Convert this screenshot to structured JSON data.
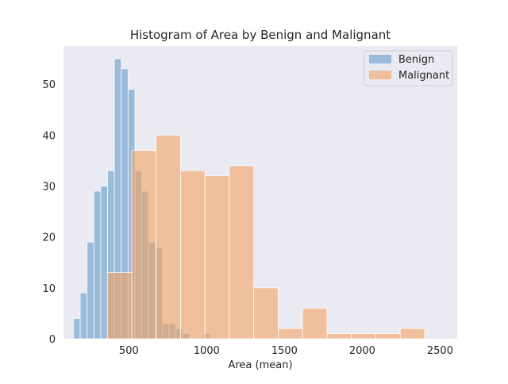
{
  "chart_data": {
    "type": "histogram",
    "title": "Histogram of Area by Benign and Malignant",
    "xlabel": "Area (mean)",
    "ylabel": "",
    "xlim": [
      80,
      2610
    ],
    "ylim": [
      0,
      57.5
    ],
    "xticks": [
      500,
      1000,
      1500,
      2000,
      2500
    ],
    "yticks": [
      0,
      10,
      20,
      30,
      40,
      50
    ],
    "grid": false,
    "legend_position": "top-right",
    "background_color": "#eaeaf2",
    "series": [
      {
        "name": "Benign",
        "color": "#4c8cc4",
        "opacity": 0.5,
        "bin_edges": [
          143.5,
          187.4,
          231.4,
          275.3,
          319.2,
          363.2,
          407.1,
          451.0,
          495.0,
          538.9,
          582.8,
          626.8,
          670.7,
          714.6,
          758.6,
          802.5,
          846.4,
          890.4,
          934.3,
          978.2,
          1022.2
        ],
        "counts": [
          4,
          9,
          19,
          29,
          30,
          33,
          55,
          53,
          49,
          33,
          29,
          19,
          18,
          3,
          3,
          2,
          1,
          0,
          0,
          1
        ]
      },
      {
        "name": "Malignant",
        "color": "#f4a261",
        "opacity": 0.6,
        "bin_edges": [
          361.6,
          518.5,
          675.3,
          832.2,
          989.0,
          1145.9,
          1302.7,
          1459.6,
          1616.4,
          1773.3,
          1930.1,
          2087.0,
          2243.8,
          2400.7
        ],
        "counts": [
          13,
          37,
          40,
          33,
          32,
          34,
          10,
          2,
          6,
          1,
          1,
          1,
          2
        ]
      }
    ]
  }
}
